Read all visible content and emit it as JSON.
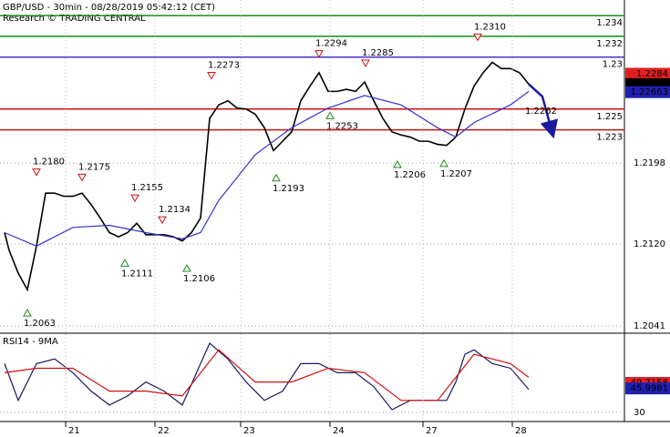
{
  "chart_data": [
    {
      "type": "line",
      "title": "GBP/USD - 30min - 08/28/2019 05:42:12 (CET)",
      "subtitle": "Research © TRADING CENTRAL",
      "xlim": [
        0,
        68.5
      ],
      "ylim": [
        1.2035,
        1.2355
      ],
      "yticks": [
        1.2041,
        {
          "value": 1.212,
          "label": "1.2120"
        },
        1.2198
      ],
      "grid": true,
      "series": [
        {
          "color": "#000000",
          "x": [
            0.5,
            1,
            2,
            3,
            4,
            5,
            6,
            7,
            8,
            9,
            10,
            11,
            12,
            13,
            14,
            15,
            16,
            17,
            18,
            19,
            20,
            21,
            22,
            23,
            24,
            25,
            26,
            27,
            28,
            29,
            30,
            31,
            32,
            33,
            34,
            35,
            36,
            37,
            38,
            39,
            40,
            41,
            42,
            43,
            44,
            45,
            46,
            47,
            48,
            49,
            50,
            51,
            52,
            53,
            54,
            55,
            56,
            57,
            58
          ],
          "values": [
            1.2131,
            1.2114,
            1.2092,
            1.2076,
            1.2118,
            1.2169,
            1.2169,
            1.2166,
            1.2166,
            1.2169,
            1.2158,
            1.2145,
            1.2131,
            1.2127,
            1.2131,
            1.214,
            1.2129,
            1.2129,
            1.2129,
            1.2127,
            1.2123,
            1.2131,
            1.2145,
            1.2241,
            1.2254,
            1.2258,
            1.2251,
            1.225,
            1.2245,
            1.2232,
            1.221,
            1.2219,
            1.2228,
            1.2258,
            1.2272,
            1.2285,
            1.2267,
            1.2267,
            1.2269,
            1.2267,
            1.2276,
            1.2258,
            1.2241,
            1.2228,
            1.2225,
            1.2223,
            1.2219,
            1.2219,
            1.2216,
            1.2215,
            1.2223,
            1.225,
            1.2272,
            1.2285,
            1.2295,
            1.2289,
            1.2289,
            1.2285,
            1.2274
          ]
        },
        {
          "color": "#3333cc",
          "x": [
            0.5,
            4,
            8,
            12,
            16,
            20,
            22,
            24,
            28,
            32,
            36,
            40,
            44,
            48,
            50,
            52,
            56,
            58
          ],
          "values": [
            1.2131,
            1.2118,
            1.2136,
            1.2138,
            1.2131,
            1.2125,
            1.2131,
            1.2162,
            1.2206,
            1.2232,
            1.2251,
            1.2263,
            1.2254,
            1.2232,
            1.2223,
            1.2237,
            1.2254,
            1.2267
          ]
        },
        {
          "color": "#1a1aa0",
          "arrow": true,
          "x": [
            58,
            59.5,
            60.5
          ],
          "values": [
            1.2274,
            1.2262,
            1.223
          ]
        }
      ],
      "levels": [
        {
          "value": 1.234,
          "color": "#1a8a1a"
        },
        {
          "value": 1.232,
          "color": "#1a8a1a"
        },
        {
          "value": 1.23,
          "color": "#4b2ecc"
        },
        {
          "value": 1.225,
          "color": "#d01010"
        },
        {
          "value": 1.223,
          "color": "#d01010"
        }
      ],
      "price_boxes": [
        {
          "value": 1.2284,
          "color": "#e02020"
        },
        {
          "value": 1.2274,
          "color": "#000000"
        },
        {
          "value": 1.22663,
          "color": "#2020b0"
        }
      ],
      "annotations": [
        {
          "value": 1.218,
          "label": "1.2180",
          "x": 4,
          "kind": "peak"
        },
        {
          "value": 1.2175,
          "x": 9,
          "kind": "peak"
        },
        {
          "value": 1.2155,
          "x": 14.8,
          "kind": "peak"
        },
        {
          "value": 1.2134,
          "x": 17.8,
          "kind": "peak"
        },
        {
          "value": 1.2111,
          "x": 13.7,
          "kind": "trough"
        },
        {
          "value": 1.2106,
          "x": 20.5,
          "kind": "trough"
        },
        {
          "value": 1.2063,
          "x": 3,
          "kind": "trough"
        },
        {
          "value": 1.2273,
          "x": 23.2,
          "kind": "peak"
        },
        {
          "value": 1.2193,
          "x": 30.3,
          "kind": "trough"
        },
        {
          "value": 1.2294,
          "x": 35,
          "kind": "peak"
        },
        {
          "value": 1.2253,
          "x": 36.2,
          "kind": "trough"
        },
        {
          "value": 1.2285,
          "x": 40.1,
          "kind": "peak"
        },
        {
          "value": 1.2206,
          "x": 43.6,
          "kind": "trough"
        },
        {
          "value": 1.2207,
          "x": 48.7,
          "kind": "trough"
        },
        {
          "value": 1.231,
          "label": "1.2310",
          "x": 52.4,
          "kind": "peak"
        },
        {
          "value": 1.2262,
          "x": 58.8,
          "kind": "target"
        }
      ]
    },
    {
      "type": "line",
      "title": "RSI14 - 9MA",
      "xlim": [
        0,
        68.5
      ],
      "ylim": [
        24.5,
        82.3
      ],
      "yticks": [
        30
      ],
      "xticks": [
        {
          "value": 7.2,
          "label": "21"
        },
        {
          "value": 17,
          "label": "22"
        },
        {
          "value": 26.4,
          "label": "23"
        },
        {
          "value": 36.2,
          "label": "24"
        },
        {
          "value": 46.4,
          "label": "27"
        },
        {
          "value": 56.2,
          "label": "28"
        }
      ],
      "series": [
        {
          "color": "#1a1a60",
          "x": [
            0.5,
            2,
            4,
            6,
            8,
            10,
            12,
            14,
            16,
            18,
            20,
            22,
            23,
            25,
            27,
            29,
            31,
            33,
            35,
            37,
            39,
            41,
            43,
            45,
            47,
            49,
            50,
            51,
            52,
            54,
            56,
            58
          ],
          "values": [
            62.6,
            38,
            62.6,
            65.7,
            56.5,
            44.2,
            34.9,
            41,
            50.3,
            44.2,
            34.9,
            62.6,
            76.2,
            65.7,
            50.3,
            38,
            44.2,
            62.6,
            62.6,
            56.5,
            56.5,
            47.2,
            31.8,
            38,
            38,
            38,
            50.3,
            68.8,
            71.8,
            62.6,
            59.5,
            45.4
          ]
        },
        {
          "color": "#d01010",
          "x": [
            0.5,
            4,
            8,
            12,
            16,
            20,
            24,
            28,
            32,
            36,
            40,
            44,
            48,
            52,
            56,
            58
          ],
          "values": [
            56.5,
            59.5,
            59.5,
            44.2,
            44.2,
            41,
            71.8,
            50.3,
            50.3,
            59.5,
            56.5,
            38,
            38,
            68.8,
            62.6,
            53.4
          ]
        }
      ],
      "price_boxes": [
        {
          "value": 49.7158,
          "color": "#e02020"
        },
        {
          "value": 45.9981,
          "color": "#2020b0"
        }
      ]
    }
  ]
}
